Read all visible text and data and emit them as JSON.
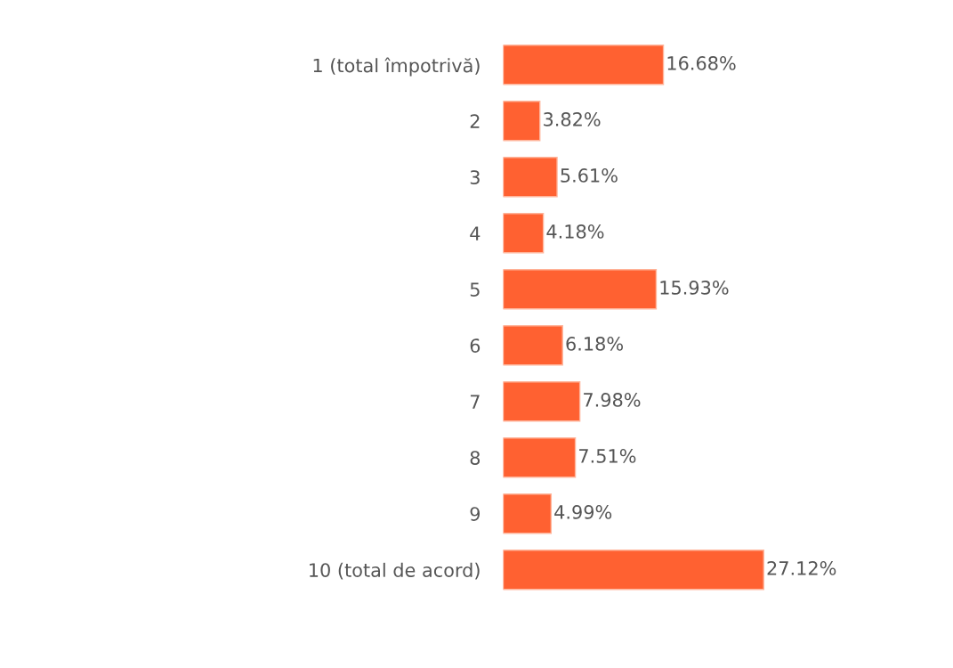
{
  "chart_data": {
    "type": "bar",
    "orientation": "horizontal",
    "categories": [
      "1 (total împotrivă)",
      "2",
      "3",
      "4",
      "5",
      "6",
      "7",
      "8",
      "9",
      "10 (total de acord)"
    ],
    "values": [
      16.68,
      3.82,
      5.61,
      4.18,
      15.93,
      6.18,
      7.98,
      7.51,
      4.99,
      27.12
    ],
    "value_labels": [
      "16.68%",
      "3.82%",
      "5.61%",
      "4.18%",
      "15.93%",
      "6.18%",
      "7.98%",
      "7.51%",
      "4.99%",
      "27.12%"
    ],
    "color": "#ff6131",
    "tick_labels": "y",
    "grid": false,
    "legend": false
  }
}
